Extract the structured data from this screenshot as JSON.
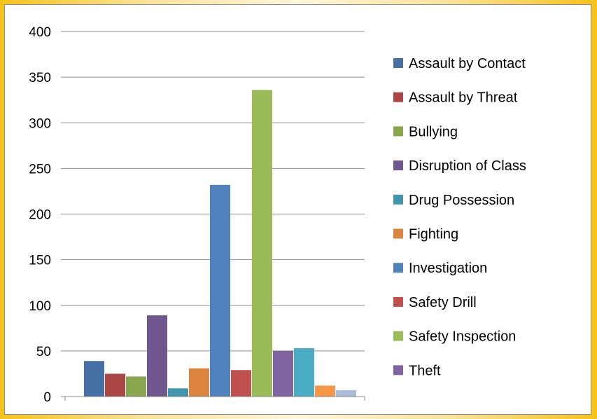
{
  "chart_data": {
    "type": "bar",
    "title": "",
    "xlabel": "",
    "ylabel": "",
    "ylim": [
      0,
      400
    ],
    "yticks": [
      0,
      50,
      100,
      150,
      200,
      250,
      300,
      350,
      400
    ],
    "grid": true,
    "legend_position": "right",
    "series": [
      {
        "name": "Assault by Contact",
        "value": 39,
        "color": "#4470a5"
      },
      {
        "name": "Assault by Threat",
        "value": 25,
        "color": "#aa4744"
      },
      {
        "name": "Bullying",
        "value": 22,
        "color": "#89a54d"
      },
      {
        "name": "Disruption of Class",
        "value": 89,
        "color": "#71578f"
      },
      {
        "name": "Drug Possession",
        "value": 9,
        "color": "#4096ad"
      },
      {
        "name": "Fighting",
        "value": 31,
        "color": "#db843d"
      },
      {
        "name": "Investigation",
        "value": 232,
        "color": "#4f81bd"
      },
      {
        "name": "Safety Drill",
        "value": 29,
        "color": "#c0504d"
      },
      {
        "name": "Safety Inspection",
        "value": 336,
        "color": "#9bbb59"
      },
      {
        "name": "Theft",
        "value": 50,
        "color": "#8064a2"
      }
    ],
    "extra_bars": [
      {
        "value": 53,
        "color": "#4bacc6"
      },
      {
        "value": 12,
        "color": "#f79646"
      },
      {
        "value": 7,
        "color": "#a9bcdc"
      }
    ]
  }
}
